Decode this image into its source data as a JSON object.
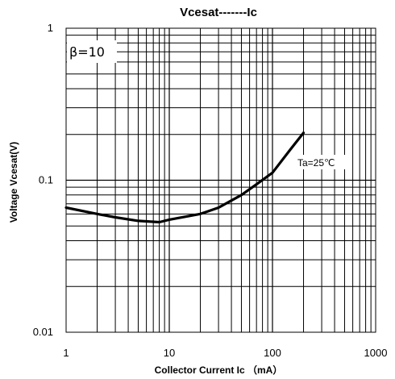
{
  "chart_data": {
    "type": "line",
    "title": "Vcesat-------Ic",
    "xlabel": "Collector Current Ic （mA）",
    "ylabel": "Voltage Vcesat(V)",
    "x_scale": "log",
    "y_scale": "log",
    "xlim": [
      1,
      1000
    ],
    "ylim": [
      0.01,
      1
    ],
    "x_ticks": [
      "1",
      "10",
      "100",
      "1000"
    ],
    "y_ticks": [
      "1",
      "0.1",
      "0.01"
    ],
    "grid": true,
    "annotations": {
      "beta": "β=10",
      "temperature": "Ta=25℃"
    },
    "series": [
      {
        "x": [
          1,
          2,
          3,
          5,
          8,
          10,
          20,
          30,
          50,
          70,
          100,
          150,
          200
        ],
        "y": [
          0.066,
          0.06,
          0.057,
          0.054,
          0.053,
          0.055,
          0.06,
          0.066,
          0.08,
          0.094,
          0.112,
          0.16,
          0.205
        ]
      }
    ]
  }
}
